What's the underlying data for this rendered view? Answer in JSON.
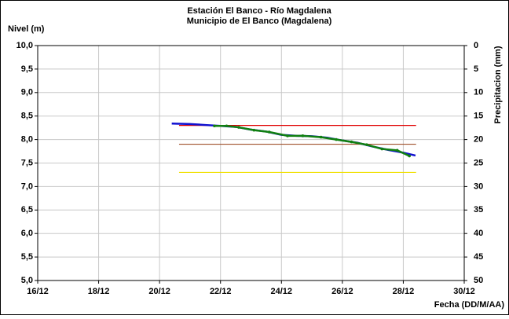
{
  "chart_data": {
    "type": "line",
    "title": "Estación El Banco - Río Magdalena",
    "subtitle": "Municipio de El Banco (Magdalena)",
    "y_label": "Nivel (m)",
    "y2_label": "Precipitacion (mm)",
    "x_label": "Fecha (DD/M/AA)",
    "xlim": [
      16,
      30
    ],
    "xticks": [
      {
        "value": 16,
        "label": "16/12"
      },
      {
        "value": 18,
        "label": "18/12"
      },
      {
        "value": 20,
        "label": "20/12"
      },
      {
        "value": 22,
        "label": "22/12"
      },
      {
        "value": 24,
        "label": "24/12"
      },
      {
        "value": 26,
        "label": "26/12"
      },
      {
        "value": 28,
        "label": "28/12"
      },
      {
        "value": 30,
        "label": "30/12"
      }
    ],
    "ylim": [
      5,
      10
    ],
    "yticks": [
      {
        "value": 5,
        "label": "5,0"
      },
      {
        "value": 5.5,
        "label": "5,5"
      },
      {
        "value": 6,
        "label": "6,0"
      },
      {
        "value": 6.5,
        "label": "6,5"
      },
      {
        "value": 7,
        "label": "7,0"
      },
      {
        "value": 7.5,
        "label": "7,5"
      },
      {
        "value": 8,
        "label": "8,0"
      },
      {
        "value": 8.5,
        "label": "8,5"
      },
      {
        "value": 9,
        "label": "9,0"
      },
      {
        "value": 9.5,
        "label": "9,5"
      },
      {
        "value": 10,
        "label": "10,0"
      }
    ],
    "y2lim": [
      0,
      50
    ],
    "y2_inverted": true,
    "y2ticks": [
      0,
      5,
      10,
      15,
      20,
      25,
      30,
      35,
      40,
      45,
      50
    ],
    "grid": true,
    "hlines": [
      {
        "value": 8.3,
        "color": "#e00000",
        "x": [
          20.64,
          28.42
        ]
      },
      {
        "value": 7.9,
        "color": "#a0522d",
        "x": [
          20.64,
          28.42
        ]
      },
      {
        "value": 7.3,
        "color": "#f0e000",
        "x": [
          20.64,
          28.42
        ]
      }
    ],
    "series": [
      {
        "color": "#1010d0",
        "markers": false,
        "x": [
          20.4,
          21.0,
          21.5,
          22.0,
          22.5,
          23.0,
          23.5,
          24.0,
          24.5,
          25.0,
          25.5,
          26.0,
          26.5,
          27.0,
          27.5,
          28.0,
          28.4
        ],
        "values": [
          8.34,
          8.33,
          8.31,
          8.29,
          8.27,
          8.21,
          8.17,
          8.1,
          8.08,
          8.07,
          8.04,
          7.98,
          7.93,
          7.85,
          7.78,
          7.72,
          7.66
        ]
      },
      {
        "color": "#108010",
        "markers": true,
        "x": [
          21.8,
          22.2,
          22.6,
          23.1,
          23.6,
          24.2,
          24.7,
          25.3,
          25.8,
          26.3,
          26.8,
          27.3,
          27.8,
          28.2
        ],
        "values": [
          8.29,
          8.29,
          8.26,
          8.2,
          8.16,
          8.08,
          8.08,
          8.05,
          8.0,
          7.95,
          7.89,
          7.8,
          7.77,
          7.65
        ]
      }
    ]
  }
}
